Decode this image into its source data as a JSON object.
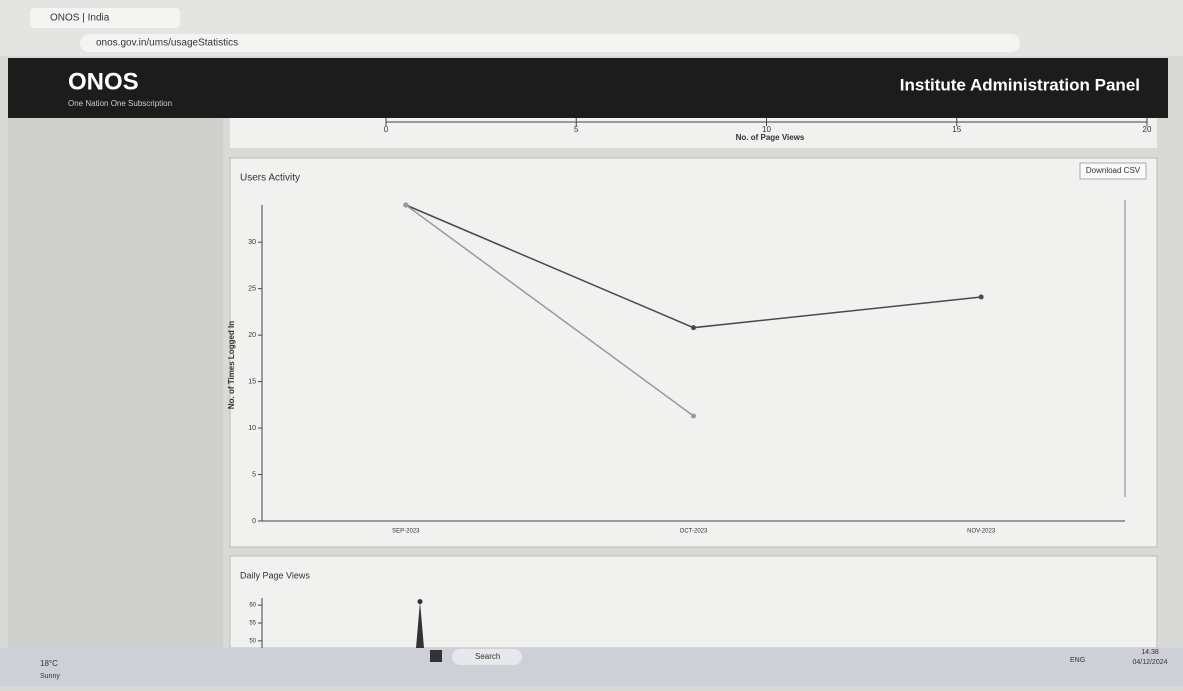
{
  "browser": {
    "tab_title": "ONOS | India",
    "url": "onos.gov.in/ums/usageStatistics"
  },
  "header": {
    "logo": "ONOS",
    "tagline": "One Nation One Subscription",
    "panel_title": "Institute Administration Panel"
  },
  "page_views_axis": {
    "xlabel": "No. of Page Views",
    "xlim": [
      0,
      20
    ],
    "xticks": [
      0,
      5,
      10,
      15,
      20
    ]
  },
  "users_activity": {
    "title": "Users Activity",
    "download": "Download CSV",
    "ylabel": "No. of Times Logged In",
    "ylim": [
      0,
      34
    ],
    "yticks": [
      0,
      5,
      10,
      15,
      20,
      25,
      30
    ],
    "categories": [
      "SEP-2023",
      "OCT-2023",
      "NOV-2023"
    ],
    "series": [
      {
        "color": "#4a4a4a",
        "values": [
          34,
          20.8,
          24.1
        ]
      },
      {
        "color": "#9a9a9a",
        "values": [
          34,
          11.3,
          null
        ]
      }
    ]
  },
  "daily_page_views": {
    "title": "Daily Page Views",
    "ylim": [
      48,
      62
    ],
    "yticks": [
      50,
      55,
      60
    ],
    "values": [
      61
    ]
  },
  "taskbar": {
    "weather": "18°C",
    "weather_desc": "Sunny",
    "search": "Search",
    "language": "ENG",
    "time": "14:38",
    "date": "04/12/2024"
  }
}
